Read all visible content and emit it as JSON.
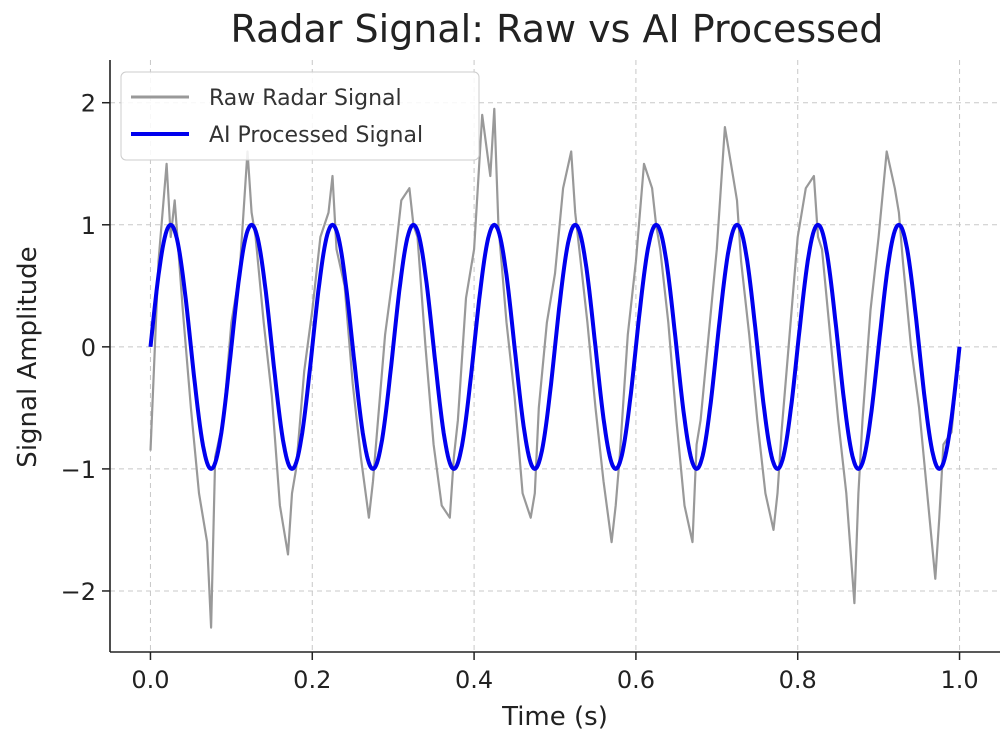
{
  "chart_data": {
    "type": "line",
    "title": "Radar Signal: Raw vs AI Processed",
    "xlabel": "Time (s)",
    "ylabel": "Signal Amplitude",
    "xlim": [
      -0.05,
      1.05
    ],
    "ylim": [
      -2.5,
      2.35
    ],
    "xticks": [
      0.0,
      0.2,
      0.4,
      0.6,
      0.8,
      1.0
    ],
    "xtick_labels": [
      "0.0",
      "0.2",
      "0.4",
      "0.6",
      "0.8",
      "1.0"
    ],
    "yticks": [
      -2,
      -1,
      0,
      1,
      2
    ],
    "ytick_labels": [
      "−2",
      "−1",
      "0",
      "1",
      "2"
    ],
    "grid": true,
    "legend_position": "top-left",
    "series": [
      {
        "name": "Raw Radar Signal",
        "color": "#999999",
        "x": [
          0.0,
          0.01,
          0.02,
          0.025,
          0.03,
          0.04,
          0.05,
          0.06,
          0.07,
          0.075,
          0.08,
          0.09,
          0.1,
          0.11,
          0.12,
          0.125,
          0.13,
          0.14,
          0.15,
          0.16,
          0.17,
          0.175,
          0.18,
          0.19,
          0.2,
          0.21,
          0.22,
          0.225,
          0.23,
          0.24,
          0.25,
          0.26,
          0.27,
          0.275,
          0.28,
          0.29,
          0.3,
          0.31,
          0.32,
          0.325,
          0.33,
          0.34,
          0.35,
          0.36,
          0.37,
          0.375,
          0.38,
          0.39,
          0.4,
          0.41,
          0.42,
          0.425,
          0.43,
          0.44,
          0.45,
          0.46,
          0.47,
          0.475,
          0.48,
          0.49,
          0.5,
          0.51,
          0.52,
          0.525,
          0.53,
          0.54,
          0.55,
          0.56,
          0.57,
          0.575,
          0.58,
          0.59,
          0.6,
          0.61,
          0.62,
          0.625,
          0.63,
          0.64,
          0.65,
          0.66,
          0.67,
          0.675,
          0.68,
          0.69,
          0.7,
          0.71,
          0.72,
          0.725,
          0.73,
          0.74,
          0.75,
          0.76,
          0.77,
          0.775,
          0.78,
          0.79,
          0.8,
          0.81,
          0.82,
          0.825,
          0.83,
          0.84,
          0.85,
          0.86,
          0.87,
          0.875,
          0.88,
          0.89,
          0.9,
          0.91,
          0.92,
          0.925,
          0.93,
          0.94,
          0.95,
          0.96,
          0.97,
          0.975,
          0.98,
          0.99,
          1.0
        ],
        "values": [
          -0.85,
          0.7,
          1.5,
          0.9,
          1.2,
          0.3,
          -0.5,
          -1.2,
          -1.6,
          -2.3,
          -0.9,
          -0.6,
          0.2,
          0.6,
          1.6,
          1.1,
          0.9,
          0.2,
          -0.4,
          -1.3,
          -1.7,
          -1.2,
          -1.0,
          -0.2,
          0.3,
          0.9,
          1.1,
          1.4,
          0.8,
          0.5,
          -0.3,
          -0.9,
          -1.4,
          -1.1,
          -0.7,
          0.1,
          0.6,
          1.2,
          1.3,
          1.0,
          0.9,
          0.0,
          -0.8,
          -1.3,
          -1.4,
          -0.9,
          -0.6,
          0.4,
          0.8,
          1.9,
          1.4,
          1.95,
          1.0,
          0.2,
          -0.4,
          -1.2,
          -1.4,
          -1.2,
          -0.5,
          0.2,
          0.6,
          1.3,
          1.6,
          1.1,
          0.8,
          0.2,
          -0.5,
          -1.1,
          -1.6,
          -1.3,
          -0.9,
          0.1,
          0.7,
          1.5,
          1.3,
          1.0,
          0.8,
          0.2,
          -0.6,
          -1.3,
          -1.6,
          -0.8,
          -0.6,
          0.1,
          0.8,
          1.8,
          1.4,
          1.2,
          0.7,
          0.1,
          -0.6,
          -1.2,
          -1.5,
          -1.2,
          -0.7,
          0.1,
          0.9,
          1.3,
          1.4,
          0.9,
          0.8,
          0.1,
          -0.6,
          -1.2,
          -2.1,
          -1.2,
          -0.6,
          0.3,
          0.9,
          1.6,
          1.3,
          1.1,
          0.7,
          0.0,
          -0.5,
          -1.2,
          -1.9,
          -1.4,
          -0.8,
          -0.7,
          0.0
        ]
      },
      {
        "name": "AI Processed Signal",
        "color": "#0000ee",
        "frequency_hz": 10,
        "amplitude": 1.0
      }
    ]
  }
}
